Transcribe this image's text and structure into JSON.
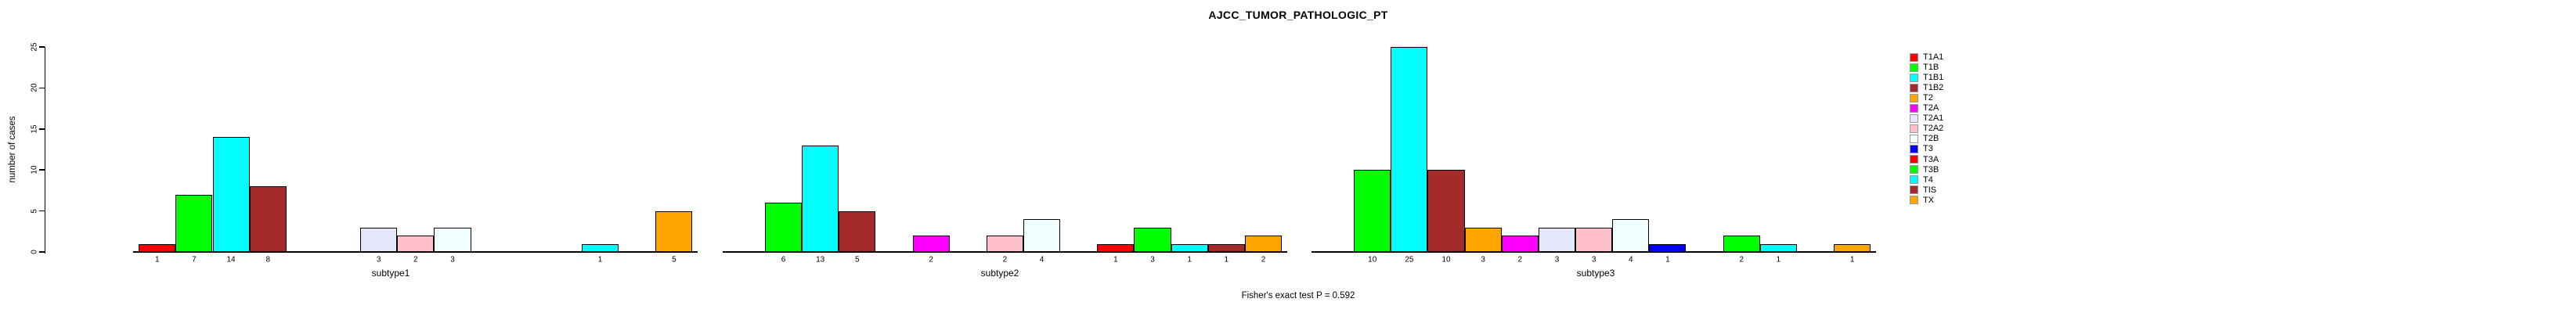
{
  "header": {
    "title": "AJCC_TUMOR_PATHOLOGIC_PT"
  },
  "axis": {
    "ylabel": "number of cases"
  },
  "footer": {
    "text": "Fisher's exact test P = 0.592"
  },
  "legend": {
    "position": "right",
    "items": [
      {
        "label": "T1A1",
        "color": "#FF0000"
      },
      {
        "label": "T1B",
        "color": "#00FF00"
      },
      {
        "label": "T1B1",
        "color": "#00FFFF"
      },
      {
        "label": "T1B2",
        "color": "#A52A2A"
      },
      {
        "label": "T2",
        "color": "#FFA500"
      },
      {
        "label": "T2A",
        "color": "#FF00FF"
      },
      {
        "label": "T2A1",
        "color": "#E6E6FA"
      },
      {
        "label": "T2A2",
        "color": "#FFC0CB"
      },
      {
        "label": "T2B",
        "color": "#F0FFFF"
      },
      {
        "label": "T3",
        "color": "#0000FF"
      },
      {
        "label": "T3A",
        "color": "#FF0000"
      },
      {
        "label": "T3B",
        "color": "#00FF00"
      },
      {
        "label": "T4",
        "color": "#00FFFF"
      },
      {
        "label": "TIS",
        "color": "#A52A2A"
      },
      {
        "label": "TX",
        "color": "#FFA500"
      }
    ]
  },
  "chart_data": {
    "type": "bar",
    "title": "AJCC_TUMOR_PATHOLOGIC_PT",
    "xlabel": "",
    "ylabel": "number of cases",
    "ylim": [
      0,
      25
    ],
    "yticks": [
      0,
      5,
      10,
      15,
      20,
      25
    ],
    "grid": false,
    "legend_position": "right",
    "categories": [
      "T1A1",
      "T1B",
      "T1B1",
      "T1B2",
      "T2",
      "T2A",
      "T2A1",
      "T2A2",
      "T2B",
      "T3",
      "T3A",
      "T3B",
      "T4",
      "TIS",
      "TX"
    ],
    "palette": [
      "#FF0000",
      "#00FF00",
      "#00FFFF",
      "#A52A2A",
      "#FFA500",
      "#FF00FF",
      "#E6E6FA",
      "#FFC0CB",
      "#F0FFFF",
      "#0000FF",
      "#FF0000",
      "#00FF00",
      "#00FFFF",
      "#A52A2A",
      "#FFA500"
    ],
    "series": [
      {
        "name": "subtype1",
        "values": [
          1,
          7,
          14,
          8,
          0,
          0,
          3,
          2,
          3,
          0,
          0,
          0,
          1,
          0,
          5
        ]
      },
      {
        "name": "subtype2",
        "values": [
          0,
          6,
          13,
          5,
          0,
          2,
          0,
          2,
          4,
          0,
          1,
          3,
          1,
          1,
          2
        ]
      },
      {
        "name": "subtype3",
        "values": [
          0,
          10,
          25,
          10,
          3,
          2,
          3,
          3,
          4,
          1,
          0,
          2,
          1,
          0,
          1
        ]
      }
    ],
    "bar_value_labels_shown": true,
    "annotation": "Fisher's exact test P = 0.592"
  }
}
